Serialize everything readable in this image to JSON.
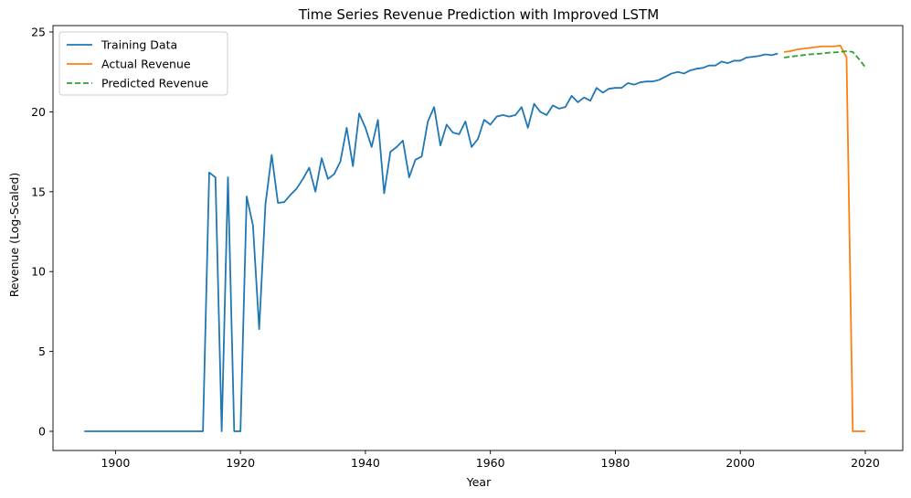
{
  "chart_data": {
    "type": "line",
    "title": "Time Series Revenue Prediction with Improved LSTM",
    "xlabel": "Year",
    "ylabel": "Revenue (Log-Scaled)",
    "xlim": [
      1890,
      2026
    ],
    "ylim": [
      -1.2,
      25.4
    ],
    "xticks": [
      1900,
      1920,
      1940,
      1960,
      1980,
      2000,
      2020
    ],
    "yticks": [
      0,
      5,
      10,
      15,
      20,
      25
    ],
    "grid": false,
    "legend_position": "top-left",
    "series": [
      {
        "name": "Training Data",
        "color": "#1f77b4",
        "style": "solid",
        "points": [
          [
            1895,
            0
          ],
          [
            1896,
            0
          ],
          [
            1897,
            0
          ],
          [
            1898,
            0
          ],
          [
            1899,
            0
          ],
          [
            1900,
            0
          ],
          [
            1901,
            0
          ],
          [
            1902,
            0
          ],
          [
            1903,
            0
          ],
          [
            1904,
            0
          ],
          [
            1905,
            0
          ],
          [
            1906,
            0
          ],
          [
            1907,
            0
          ],
          [
            1908,
            0
          ],
          [
            1909,
            0
          ],
          [
            1910,
            0
          ],
          [
            1911,
            0
          ],
          [
            1912,
            0
          ],
          [
            1913,
            0
          ],
          [
            1914,
            0
          ],
          [
            1915,
            16.2
          ],
          [
            1916,
            15.9
          ],
          [
            1917,
            0
          ],
          [
            1918,
            15.9
          ],
          [
            1919,
            0
          ],
          [
            1920,
            0
          ],
          [
            1921,
            14.7
          ],
          [
            1922,
            12.9
          ],
          [
            1923,
            6.4
          ],
          [
            1924,
            14.2
          ],
          [
            1925,
            17.3
          ],
          [
            1926,
            14.3
          ],
          [
            1927,
            14.35
          ],
          [
            1928,
            14.8
          ],
          [
            1929,
            15.2
          ],
          [
            1930,
            15.8
          ],
          [
            1931,
            16.5
          ],
          [
            1932,
            15.0
          ],
          [
            1933,
            17.1
          ],
          [
            1934,
            15.8
          ],
          [
            1935,
            16.1
          ],
          [
            1936,
            16.9
          ],
          [
            1937,
            19.0
          ],
          [
            1938,
            16.6
          ],
          [
            1939,
            19.9
          ],
          [
            1940,
            19.0
          ],
          [
            1941,
            17.8
          ],
          [
            1942,
            19.5
          ],
          [
            1943,
            14.9
          ],
          [
            1944,
            17.5
          ],
          [
            1945,
            17.8
          ],
          [
            1946,
            18.2
          ],
          [
            1947,
            15.9
          ],
          [
            1948,
            17.0
          ],
          [
            1949,
            17.2
          ],
          [
            1950,
            19.4
          ],
          [
            1951,
            20.3
          ],
          [
            1952,
            17.9
          ],
          [
            1953,
            19.2
          ],
          [
            1954,
            18.7
          ],
          [
            1955,
            18.6
          ],
          [
            1956,
            19.4
          ],
          [
            1957,
            17.8
          ],
          [
            1958,
            18.3
          ],
          [
            1959,
            19.5
          ],
          [
            1960,
            19.2
          ],
          [
            1961,
            19.7
          ],
          [
            1962,
            19.8
          ],
          [
            1963,
            19.7
          ],
          [
            1964,
            19.8
          ],
          [
            1965,
            20.3
          ],
          [
            1966,
            19.0
          ],
          [
            1967,
            20.5
          ],
          [
            1968,
            20.0
          ],
          [
            1969,
            19.8
          ],
          [
            1970,
            20.4
          ],
          [
            1971,
            20.2
          ],
          [
            1972,
            20.3
          ],
          [
            1973,
            21.0
          ],
          [
            1974,
            20.6
          ],
          [
            1975,
            20.9
          ],
          [
            1976,
            20.7
          ],
          [
            1977,
            21.5
          ],
          [
            1978,
            21.2
          ],
          [
            1979,
            21.45
          ],
          [
            1980,
            21.5
          ],
          [
            1981,
            21.5
          ],
          [
            1982,
            21.8
          ],
          [
            1983,
            21.7
          ],
          [
            1984,
            21.85
          ],
          [
            1985,
            21.9
          ],
          [
            1986,
            21.9
          ],
          [
            1987,
            22.0
          ],
          [
            1988,
            22.2
          ],
          [
            1989,
            22.4
          ],
          [
            1990,
            22.5
          ],
          [
            1991,
            22.4
          ],
          [
            1992,
            22.6
          ],
          [
            1993,
            22.7
          ],
          [
            1994,
            22.75
          ],
          [
            1995,
            22.9
          ],
          [
            1996,
            22.9
          ],
          [
            1997,
            23.15
          ],
          [
            1998,
            23.05
          ],
          [
            1999,
            23.2
          ],
          [
            2000,
            23.2
          ],
          [
            2001,
            23.4
          ],
          [
            2002,
            23.45
          ],
          [
            2003,
            23.5
          ],
          [
            2004,
            23.6
          ],
          [
            2005,
            23.55
          ],
          [
            2006,
            23.65
          ]
        ]
      },
      {
        "name": "Actual Revenue",
        "color": "#ff7f0e",
        "style": "solid",
        "points": [
          [
            2007,
            23.75
          ],
          [
            2008,
            23.8
          ],
          [
            2009,
            23.9
          ],
          [
            2010,
            23.95
          ],
          [
            2011,
            24.0
          ],
          [
            2012,
            24.05
          ],
          [
            2013,
            24.1
          ],
          [
            2014,
            24.1
          ],
          [
            2015,
            24.1
          ],
          [
            2016,
            24.15
          ],
          [
            2017,
            23.4
          ],
          [
            2018,
            0
          ],
          [
            2019,
            0
          ],
          [
            2020,
            0
          ]
        ]
      },
      {
        "name": "Predicted Revenue",
        "color": "#2ca02c",
        "style": "dashed",
        "points": [
          [
            2007,
            23.4
          ],
          [
            2008,
            23.45
          ],
          [
            2009,
            23.5
          ],
          [
            2010,
            23.55
          ],
          [
            2011,
            23.6
          ],
          [
            2012,
            23.62
          ],
          [
            2013,
            23.65
          ],
          [
            2014,
            23.7
          ],
          [
            2015,
            23.72
          ],
          [
            2016,
            23.75
          ],
          [
            2017,
            23.8
          ],
          [
            2018,
            23.75
          ],
          [
            2019,
            23.3
          ],
          [
            2020,
            22.8
          ]
        ]
      }
    ]
  }
}
